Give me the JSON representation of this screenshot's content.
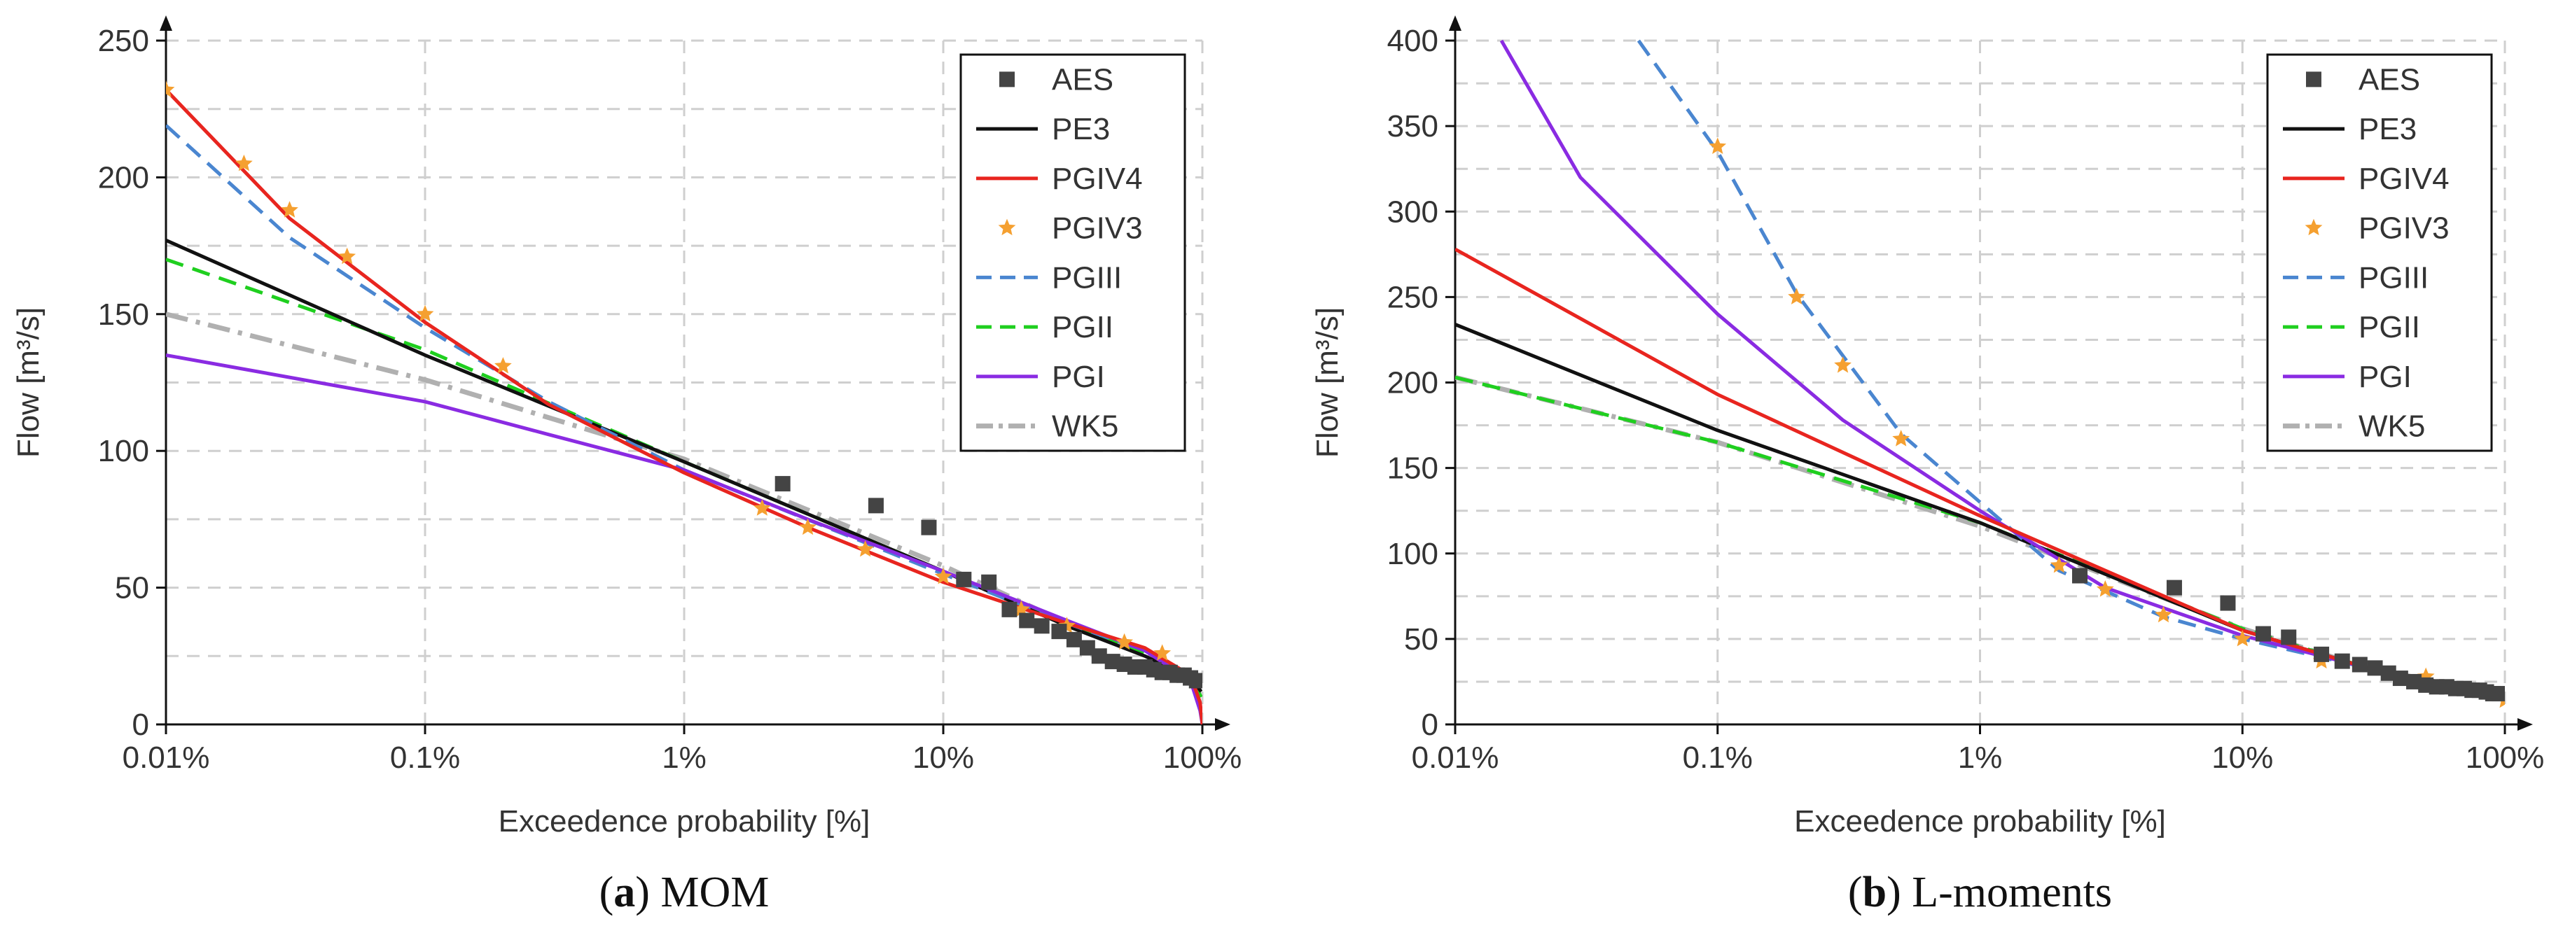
{
  "chart_data": [
    {
      "id": "a",
      "type": "line",
      "xscale": "log",
      "xlim": [
        0.01,
        100
      ],
      "ylim": [
        0,
        250
      ],
      "xticks": [
        0.01,
        0.1,
        1,
        10,
        100
      ],
      "xtick_labels": [
        "0.01%",
        "0.1%",
        "1%",
        "10%",
        "100%"
      ],
      "yticks": [
        0,
        50,
        100,
        150,
        200,
        250
      ],
      "ytick_labels": [
        "0",
        "50",
        "100",
        "150",
        "200",
        "250"
      ],
      "xlabel": "Exceedence probability [%]",
      "ylabel": "Flow [m³/s]",
      "caption_letter": "a",
      "caption_text": "MOM",
      "grid": true,
      "legend_position": "top-right",
      "series": [
        {
          "name": "AES",
          "style": "square",
          "color": "#444444",
          "points": [
            [
              2.4,
              88
            ],
            [
              5.5,
              80
            ],
            [
              8.8,
              72
            ],
            [
              12,
              53
            ],
            [
              15,
              52
            ],
            [
              18,
              42
            ],
            [
              21,
              38
            ],
            [
              24,
              36
            ],
            [
              28,
              34
            ],
            [
              32,
              31
            ],
            [
              36,
              28
            ],
            [
              40,
              25
            ],
            [
              45,
              23
            ],
            [
              50,
              22
            ],
            [
              55,
              21
            ],
            [
              60,
              21
            ],
            [
              65,
              20
            ],
            [
              70,
              19
            ],
            [
              75,
              19
            ],
            [
              80,
              18
            ],
            [
              85,
              18
            ],
            [
              90,
              17
            ],
            [
              95,
              16
            ]
          ]
        },
        {
          "name": "PE3",
          "style": "solid",
          "color": "#111111",
          "points": [
            [
              0.01,
              177
            ],
            [
              0.1,
              135
            ],
            [
              1,
              96
            ],
            [
              10,
              56
            ],
            [
              30,
              36
            ],
            [
              60,
              25
            ],
            [
              90,
              17
            ],
            [
              99,
              12
            ]
          ]
        },
        {
          "name": "PGIV4",
          "style": "solid",
          "color": "#e8251f",
          "points": [
            [
              0.01,
              232
            ],
            [
              0.03,
              185
            ],
            [
              0.1,
              147
            ],
            [
              0.3,
              117
            ],
            [
              1,
              92
            ],
            [
              3,
              72
            ],
            [
              10,
              52
            ],
            [
              30,
              37
            ],
            [
              60,
              28
            ],
            [
              90,
              18
            ],
            [
              98,
              8
            ],
            [
              100,
              0
            ]
          ]
        },
        {
          "name": "PGIV3",
          "style": "star",
          "color": "#f5a030",
          "points": [
            [
              0.01,
              232
            ],
            [
              0.02,
              205
            ],
            [
              0.03,
              188
            ],
            [
              0.05,
              171
            ],
            [
              0.1,
              150
            ],
            [
              0.2,
              131
            ],
            [
              2,
              79
            ],
            [
              3,
              72
            ],
            [
              5,
              64
            ],
            [
              10,
              54
            ],
            [
              20,
              42
            ],
            [
              30,
              36
            ],
            [
              50,
              30
            ],
            [
              70,
              26
            ]
          ]
        },
        {
          "name": "PGIII",
          "style": "dashed",
          "color": "#4a86d0",
          "points": [
            [
              0.01,
              219
            ],
            [
              0.03,
              178
            ],
            [
              0.1,
              145
            ],
            [
              0.3,
              118
            ],
            [
              1,
              93
            ],
            [
              10,
              55
            ],
            [
              30,
              37
            ],
            [
              60,
              27
            ],
            [
              90,
              17
            ],
            [
              98,
              8
            ],
            [
              100,
              0
            ]
          ]
        },
        {
          "name": "PGII",
          "style": "dashed",
          "color": "#1fcf1f",
          "points": [
            [
              0.01,
              170
            ],
            [
              0.1,
              137
            ],
            [
              1,
              96
            ],
            [
              10,
              56
            ],
            [
              30,
              37
            ],
            [
              60,
              26
            ],
            [
              90,
              17
            ],
            [
              99,
              10
            ]
          ]
        },
        {
          "name": "PGI",
          "style": "solid",
          "color": "#8a2be2",
          "points": [
            [
              0.01,
              135
            ],
            [
              0.1,
              118
            ],
            [
              0.3,
              106
            ],
            [
              1,
              93
            ],
            [
              3,
              75
            ],
            [
              10,
              56
            ],
            [
              30,
              38
            ],
            [
              60,
              27
            ],
            [
              90,
              16
            ],
            [
              98,
              5
            ],
            [
              100,
              0
            ]
          ]
        },
        {
          "name": "WK5",
          "style": "dashdot",
          "color": "#b0b0b0",
          "points": [
            [
              0.01,
              150
            ],
            [
              0.1,
              126
            ],
            [
              1,
              97
            ],
            [
              10,
              58
            ],
            [
              30,
              37
            ],
            [
              60,
              26
            ],
            [
              90,
              16
            ],
            [
              99,
              10
            ]
          ]
        }
      ]
    },
    {
      "id": "b",
      "type": "line",
      "xscale": "log",
      "xlim": [
        0.01,
        100
      ],
      "ylim": [
        0,
        400
      ],
      "xticks": [
        0.01,
        0.1,
        1,
        10,
        100
      ],
      "xtick_labels": [
        "0.01%",
        "0.1%",
        "1%",
        "10%",
        "100%"
      ],
      "yticks": [
        0,
        50,
        100,
        150,
        200,
        250,
        300,
        350,
        400
      ],
      "ytick_labels": [
        "0",
        "50",
        "100",
        "150",
        "200",
        "250",
        "300",
        "350",
        "400"
      ],
      "xlabel": "Exceedence probability [%]",
      "ylabel": "Flow [m³/s]",
      "caption_letter": "b",
      "caption_text": "L-moments",
      "grid": true,
      "legend_position": "top-right",
      "series": [
        {
          "name": "AES",
          "style": "square",
          "color": "#444444",
          "points": [
            [
              2.4,
              87
            ],
            [
              5.5,
              80
            ],
            [
              8.8,
              71
            ],
            [
              12,
              53
            ],
            [
              15,
              51
            ],
            [
              20,
              41
            ],
            [
              24,
              37
            ],
            [
              28,
              35
            ],
            [
              32,
              33
            ],
            [
              36,
              30
            ],
            [
              40,
              27
            ],
            [
              45,
              25
            ],
            [
              50,
              23
            ],
            [
              55,
              22
            ],
            [
              60,
              22
            ],
            [
              65,
              21
            ],
            [
              70,
              21
            ],
            [
              75,
              20
            ],
            [
              80,
              20
            ],
            [
              85,
              19
            ],
            [
              90,
              18
            ],
            [
              95,
              18
            ]
          ]
        },
        {
          "name": "PE3",
          "style": "solid",
          "color": "#111111",
          "points": [
            [
              0.01,
              234
            ],
            [
              0.1,
              172
            ],
            [
              1,
              118
            ],
            [
              10,
              55
            ],
            [
              30,
              33
            ],
            [
              60,
              24
            ],
            [
              90,
              18
            ],
            [
              99,
              15
            ]
          ]
        },
        {
          "name": "PGIV4",
          "style": "solid",
          "color": "#e8251f",
          "points": [
            [
              0.01,
              278
            ],
            [
              0.1,
              193
            ],
            [
              1,
              122
            ],
            [
              10,
              55
            ],
            [
              30,
              33
            ],
            [
              60,
              24
            ],
            [
              90,
              18
            ],
            [
              99,
              15
            ]
          ]
        },
        {
          "name": "PGIV3",
          "style": "star",
          "color": "#f5a030",
          "points": [
            [
              0.1,
              338
            ],
            [
              0.2,
              250
            ],
            [
              0.3,
              210
            ],
            [
              0.5,
              167
            ],
            [
              2,
              93
            ],
            [
              3,
              79
            ],
            [
              5,
              64
            ],
            [
              10,
              50
            ],
            [
              20,
              37
            ],
            [
              50,
              28
            ],
            [
              100,
              14
            ]
          ]
        },
        {
          "name": "PGIII",
          "style": "dashed",
          "color": "#4a86d0",
          "points": [
            [
              0.05,
              400
            ],
            [
              0.1,
              335
            ],
            [
              0.2,
              252
            ],
            [
              0.5,
              170
            ],
            [
              1,
              130
            ],
            [
              2,
              90
            ],
            [
              5,
              63
            ],
            [
              10,
              50
            ],
            [
              30,
              33
            ],
            [
              60,
              24
            ],
            [
              90,
              18
            ],
            [
              99,
              15
            ]
          ]
        },
        {
          "name": "PGII",
          "style": "dashed",
          "color": "#1fcf1f",
          "points": [
            [
              0.01,
              203
            ],
            [
              0.1,
              165
            ],
            [
              1,
              118
            ],
            [
              10,
              56
            ],
            [
              30,
              33
            ],
            [
              60,
              24
            ],
            [
              90,
              18
            ],
            [
              99,
              15
            ]
          ]
        },
        {
          "name": "PGI",
          "style": "solid",
          "color": "#8a2be2",
          "points": [
            [
              0.015,
              400
            ],
            [
              0.03,
              320
            ],
            [
              0.1,
              240
            ],
            [
              0.3,
              178
            ],
            [
              1,
              125
            ],
            [
              3,
              80
            ],
            [
              10,
              52
            ],
            [
              30,
              33
            ],
            [
              60,
              24
            ],
            [
              90,
              18
            ],
            [
              99,
              15
            ]
          ]
        },
        {
          "name": "WK5",
          "style": "dashdot",
          "color": "#b0b0b0",
          "points": [
            [
              0.01,
              203
            ],
            [
              0.1,
              165
            ],
            [
              1,
              116
            ],
            [
              10,
              56
            ],
            [
              30,
              33
            ],
            [
              60,
              24
            ],
            [
              90,
              18
            ],
            [
              99,
              15
            ]
          ]
        }
      ]
    }
  ]
}
